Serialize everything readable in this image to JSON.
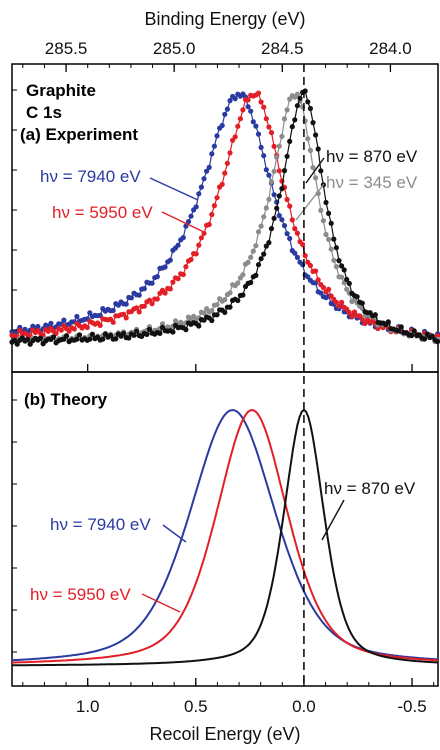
{
  "chart_data": [
    {
      "type": "scatter",
      "panel": "a",
      "title_lines": [
        "Graphite",
        "C 1s",
        "(a) Experiment"
      ],
      "xlabel_top": "Binding Energy (eV)",
      "top_ticks": [
        "285.5",
        "285.0",
        "284.5",
        "284.0"
      ],
      "xlim_recoil": [
        1.35,
        -0.62
      ],
      "top_axis_relation": "binding = 284.4 + recoil",
      "reference_line_x": 0.0,
      "series": [
        {
          "name": "hν = 7940 eV",
          "label": "hν = 7940 eV",
          "color": "#2a3aa0",
          "peak_recoil": 0.3,
          "fwhm": 0.4
        },
        {
          "name": "hν = 5950 eV",
          "label": "hν = 5950 eV",
          "color": "#e21e26",
          "peak_recoil": 0.23,
          "fwhm": 0.36
        },
        {
          "name": "hν = 345 eV",
          "label": "hν = 345 eV",
          "color": "#8c8c8c",
          "peak_recoil": 0.04,
          "fwhm": 0.26
        },
        {
          "name": "hν = 870 eV",
          "label": "hν = 870 eV",
          "color": "#111111",
          "peak_recoil": 0.0,
          "fwhm": 0.24
        }
      ]
    },
    {
      "type": "line",
      "panel": "b",
      "title": "(b) Theory",
      "xlabel": "Recoil Energy (eV)",
      "x_ticks": [
        "1.0",
        "0.5",
        "0.0",
        "-0.5"
      ],
      "xlim": [
        1.35,
        -0.62
      ],
      "reference_line_x": 0.0,
      "series": [
        {
          "name": "hν = 7940 eV",
          "label": "hν = 7940 eV",
          "color": "#2a3aa0",
          "peak_recoil": 0.33,
          "fwhm": 0.47
        },
        {
          "name": "hν = 5950 eV",
          "label": "hν = 5950 eV",
          "color": "#e21e26",
          "peak_recoil": 0.24,
          "fwhm": 0.39
        },
        {
          "name": "hν = 870 eV",
          "label": "hν = 870 eV",
          "color": "#111111",
          "peak_recoil": 0.0,
          "fwhm": 0.22
        }
      ]
    }
  ]
}
